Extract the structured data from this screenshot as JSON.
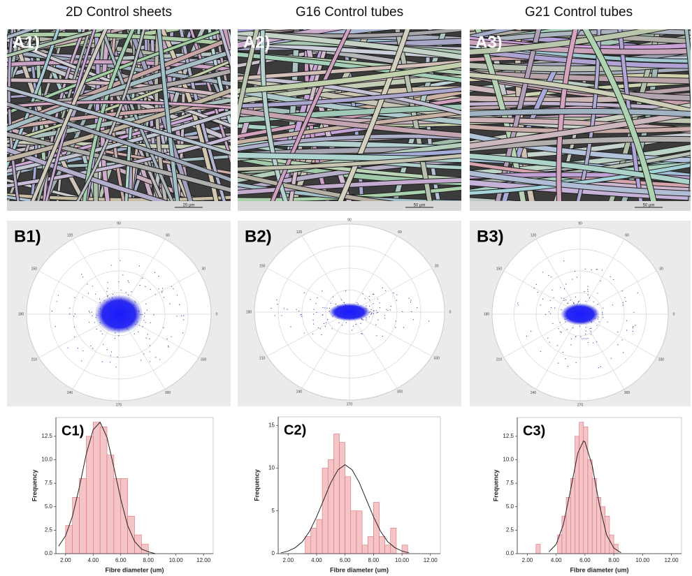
{
  "columns": [
    "2D Control sheets",
    "G16 Control tubes",
    "G21 Control tubes"
  ],
  "sem": [
    {
      "label": "A1)",
      "scale": "20 µm"
    },
    {
      "label": "A2)",
      "scale": "50 µm"
    },
    {
      "label": "A3)",
      "scale": "50 µm"
    }
  ],
  "polar": [
    {
      "label": "B1)"
    },
    {
      "label": "B2)"
    },
    {
      "label": "B3)"
    }
  ],
  "polar_angles": [
    0,
    30,
    60,
    90,
    120,
    150,
    180,
    210,
    240,
    270,
    300,
    330
  ],
  "chart_data": [
    {
      "type": "histogram",
      "label": "C1)",
      "xlabel": "Fibre diameter (um)",
      "ylabel": "Frequency",
      "bins": [
        2.0,
        2.5,
        3.0,
        3.5,
        4.0,
        4.5,
        5.0,
        5.5,
        6.0,
        6.5,
        7.0,
        7.5,
        8.0
      ],
      "values": [
        3,
        6,
        8,
        12.5,
        14,
        13.5,
        10.5,
        8,
        8,
        4,
        2,
        1
      ],
      "color": "#f4c4c6",
      "edge_color": "#d9707a",
      "xlim": [
        1.3,
        12.7
      ],
      "ylim": [
        0,
        14.5
      ],
      "xticks": [
        {
          "value": 2,
          "label": "2.00"
        },
        {
          "value": 4,
          "label": "4.00"
        },
        {
          "value": 6,
          "label": "6.00"
        },
        {
          "value": 8,
          "label": "8.00"
        },
        {
          "value": 10,
          "label": "10.00"
        },
        {
          "value": 12,
          "label": "12.00"
        }
      ],
      "yticks": [
        {
          "value": 0,
          "label": "0.0"
        },
        {
          "value": 2.5,
          "label": "2.5"
        },
        {
          "value": 5,
          "label": "5.0"
        },
        {
          "value": 7.5,
          "label": "7.5"
        },
        {
          "value": 10,
          "label": "10.0"
        },
        {
          "value": 12.5,
          "label": "12.5"
        }
      ],
      "curve": {
        "color": "#222222",
        "x": [
          1.5,
          2.0,
          2.5,
          3.0,
          3.5,
          4.0,
          4.5,
          5.0,
          5.5,
          6.0,
          6.5,
          7.0,
          7.5,
          8.0,
          8.5
        ],
        "y": [
          0.8,
          1.9,
          4.0,
          7.1,
          10.6,
          13.2,
          14.0,
          12.4,
          9.2,
          5.8,
          3.0,
          1.3,
          0.5,
          0.2,
          0.0
        ]
      }
    },
    {
      "type": "histogram",
      "label": "C2)",
      "xlabel": "Fibre diameter (um)",
      "ylabel": "Frequency",
      "bins": [
        3.2,
        3.6,
        4.0,
        4.4,
        4.8,
        5.2,
        5.6,
        6.0,
        6.4,
        6.8,
        7.2,
        7.6,
        8.0,
        8.4,
        8.8,
        9.2,
        9.6,
        10.0,
        10.4
      ],
      "values": [
        2,
        3,
        4,
        10,
        11,
        14,
        13,
        9,
        5,
        5,
        1,
        2,
        6,
        2,
        1,
        3,
        0,
        1
      ],
      "color": "#f4c4c6",
      "edge_color": "#d9707a",
      "xlim": [
        1.3,
        12.7
      ],
      "ylim": [
        0,
        16
      ],
      "xticks": [
        {
          "value": 2,
          "label": "2.00"
        },
        {
          "value": 4,
          "label": "4.00"
        },
        {
          "value": 6,
          "label": "6.00"
        },
        {
          "value": 8,
          "label": "8.00"
        },
        {
          "value": 10,
          "label": "10.00"
        },
        {
          "value": 12,
          "label": "12.00"
        }
      ],
      "yticks": [
        0,
        5,
        10,
        15
      ],
      "curve": {
        "color": "#222222",
        "x": [
          1.5,
          2.0,
          2.5,
          3.0,
          3.5,
          4.0,
          4.5,
          5.0,
          5.5,
          6.0,
          6.5,
          7.0,
          7.5,
          8.0,
          8.5,
          9.0,
          9.5,
          10.0,
          10.5
        ],
        "y": [
          0.1,
          0.3,
          0.7,
          1.4,
          2.6,
          4.3,
          6.3,
          8.3,
          9.8,
          10.4,
          9.8,
          8.3,
          6.3,
          4.3,
          2.6,
          1.4,
          0.7,
          0.3,
          0.1
        ]
      }
    },
    {
      "type": "histogram",
      "label": "C3)",
      "xlabel": "Fibre diameter (um)",
      "ylabel": "Frequency",
      "bins": [
        2.6,
        2.9,
        3.2,
        3.5,
        3.8,
        4.1,
        4.4,
        4.7,
        5.0,
        5.3,
        5.6,
        5.9,
        6.2,
        6.5,
        6.8,
        7.1,
        7.4,
        7.7,
        8.0,
        8.3
      ],
      "values": [
        1,
        0,
        0,
        0,
        0,
        2,
        4,
        6,
        8,
        12.5,
        14,
        13.5,
        10,
        8,
        6,
        5,
        4,
        2,
        1
      ],
      "color": "#f4c4c6",
      "edge_color": "#d9707a",
      "xlim": [
        1.3,
        12.7
      ],
      "ylim": [
        0,
        14.5
      ],
      "xticks": [
        {
          "value": 2,
          "label": "2.00"
        },
        {
          "value": 4,
          "label": "4.00"
        },
        {
          "value": 6,
          "label": "6.00"
        },
        {
          "value": 8,
          "label": "8.00"
        },
        {
          "value": 10,
          "label": "10.00"
        },
        {
          "value": 12,
          "label": "12.00"
        }
      ],
      "yticks": [
        {
          "value": 0,
          "label": "0.0"
        },
        {
          "value": 2.5,
          "label": "2.5"
        },
        {
          "value": 5,
          "label": "5.0"
        },
        {
          "value": 7.5,
          "label": "7.5"
        },
        {
          "value": 10,
          "label": "10.0"
        },
        {
          "value": 12.5,
          "label": "12.5"
        }
      ],
      "curve": {
        "color": "#222222",
        "x": [
          3.5,
          4.0,
          4.5,
          5.0,
          5.5,
          5.9,
          6.0,
          6.5,
          7.0,
          7.5,
          8.0,
          8.5
        ],
        "y": [
          0.2,
          1.0,
          3.1,
          6.8,
          10.7,
          12.0,
          11.9,
          9.4,
          5.2,
          2.0,
          0.6,
          0.1
        ]
      }
    }
  ]
}
